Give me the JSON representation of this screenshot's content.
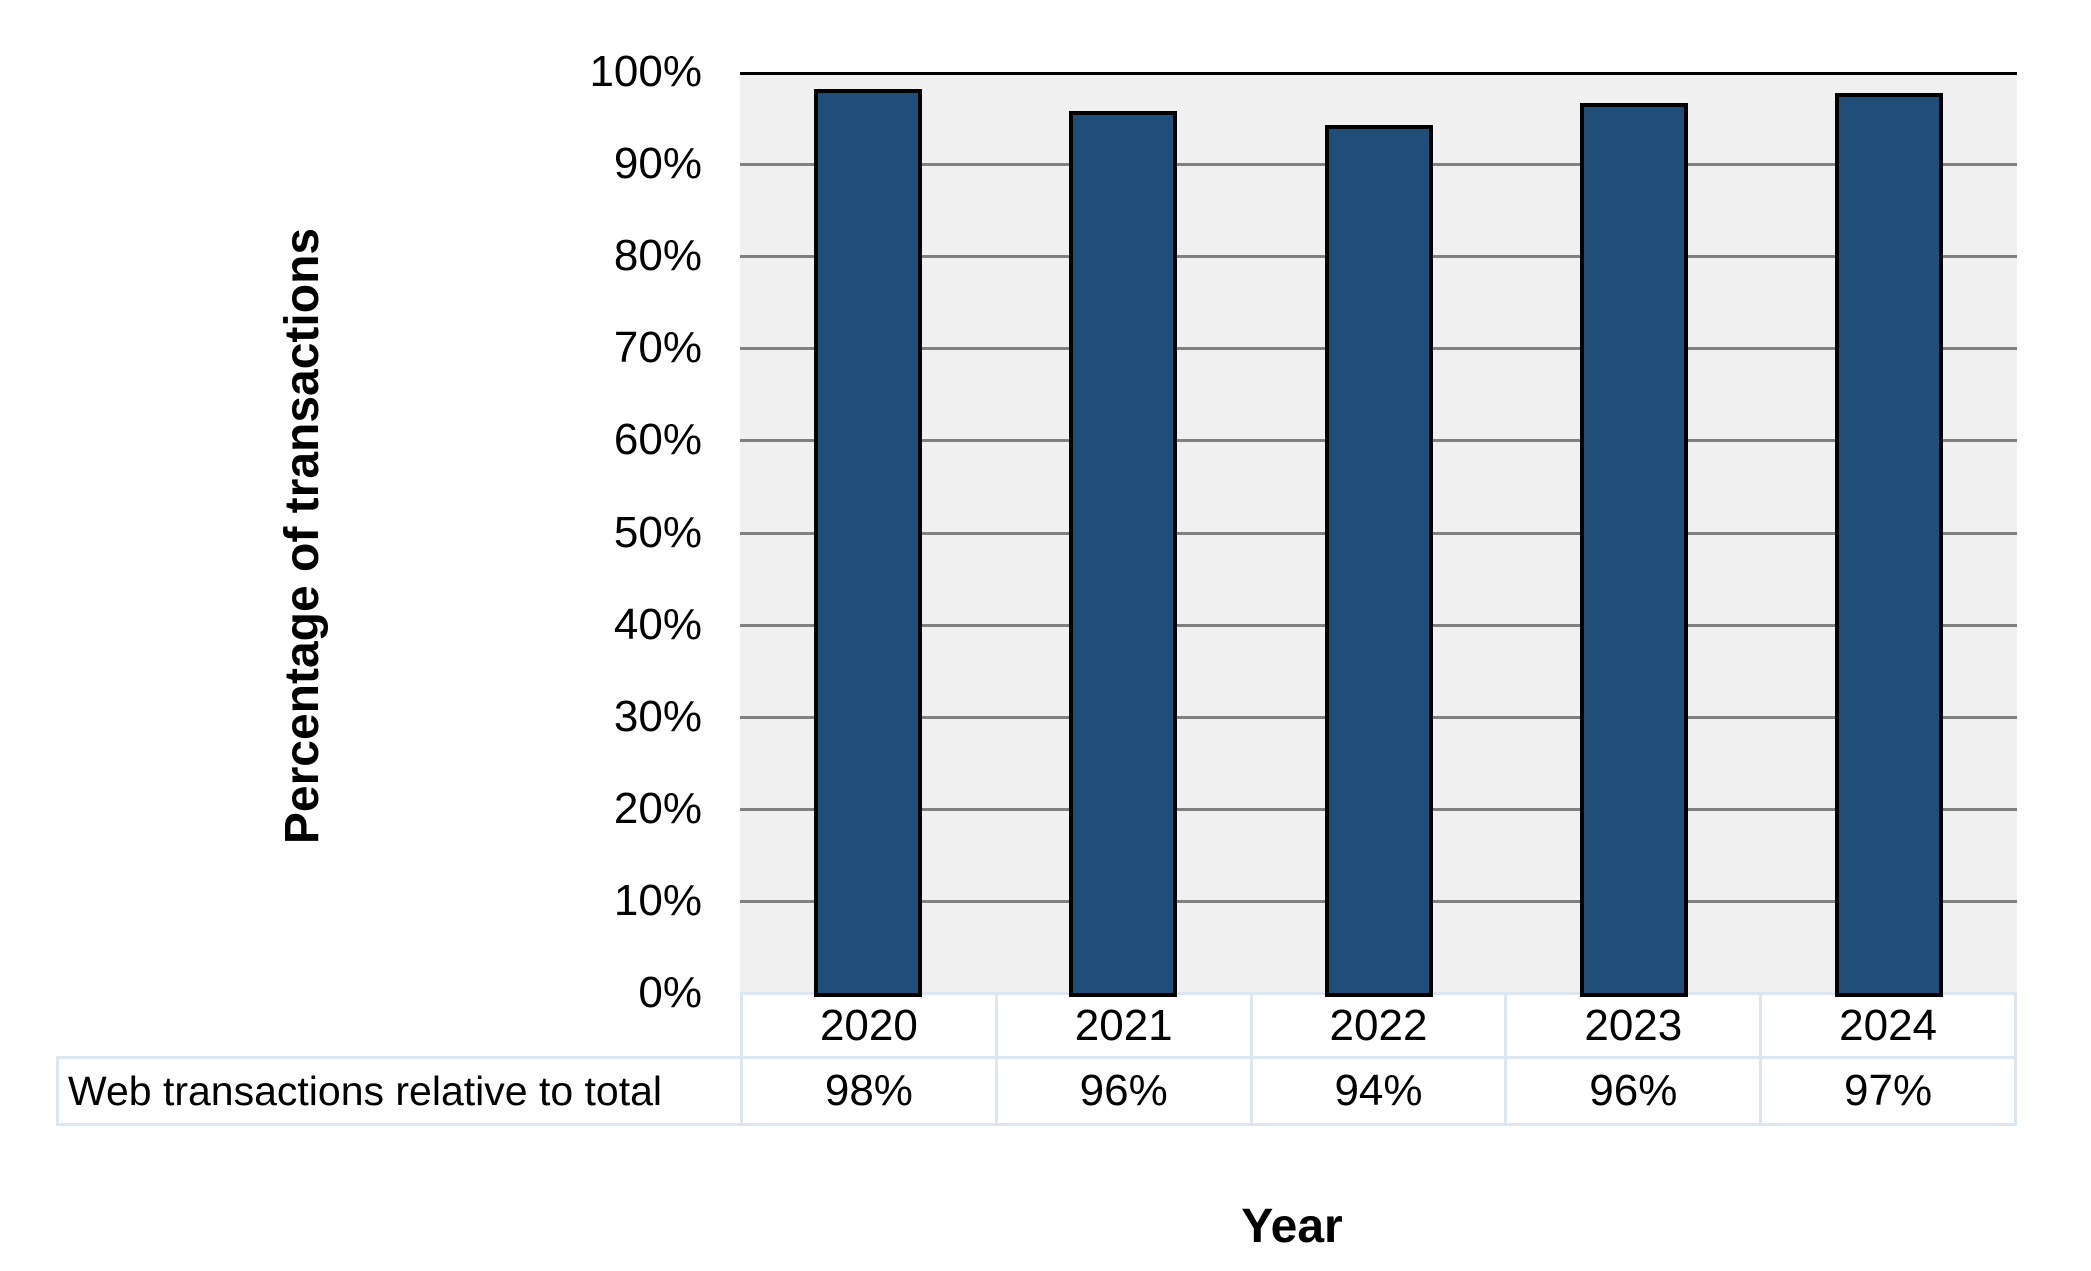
{
  "chart_data": {
    "type": "bar",
    "title": "",
    "xlabel": "Year",
    "ylabel": "Percentage of transactions",
    "categories": [
      "2020",
      "2021",
      "2022",
      "2023",
      "2024"
    ],
    "series": [
      {
        "name": "Web transactions relative to total",
        "values": [
          98,
          96,
          94,
          96,
          97
        ],
        "values_displayed": [
          "98%",
          "96%",
          "94%",
          "96%",
          "97%"
        ]
      }
    ],
    "bar_heights_pct_estimated": [
      98.2,
      95.8,
      94.2,
      96.6,
      97.7
    ],
    "ylim": [
      0,
      100
    ],
    "y_tick_step": 10,
    "y_ticks": [
      "100%",
      "90%",
      "80%",
      "70%",
      "60%",
      "50%",
      "40%",
      "30%",
      "20%",
      "10%",
      "0%"
    ],
    "grid": true,
    "legend_position": "none (series labeled in data table below chart)",
    "colors": {
      "bar_fill": "#1F4E79",
      "bar_border": "#000000",
      "plot_background": "#F0F0F0",
      "gridline": "#808080",
      "top_gridline": "#000000",
      "table_border": "#DCE6F2",
      "text": "#000000",
      "page_background": "#FFFFFF"
    }
  },
  "data_table": {
    "row_header": "Web transactions relative to total",
    "columns": [
      "2020",
      "2021",
      "2022",
      "2023",
      "2024"
    ],
    "values": [
      "98%",
      "96%",
      "94%",
      "96%",
      "97%"
    ]
  }
}
